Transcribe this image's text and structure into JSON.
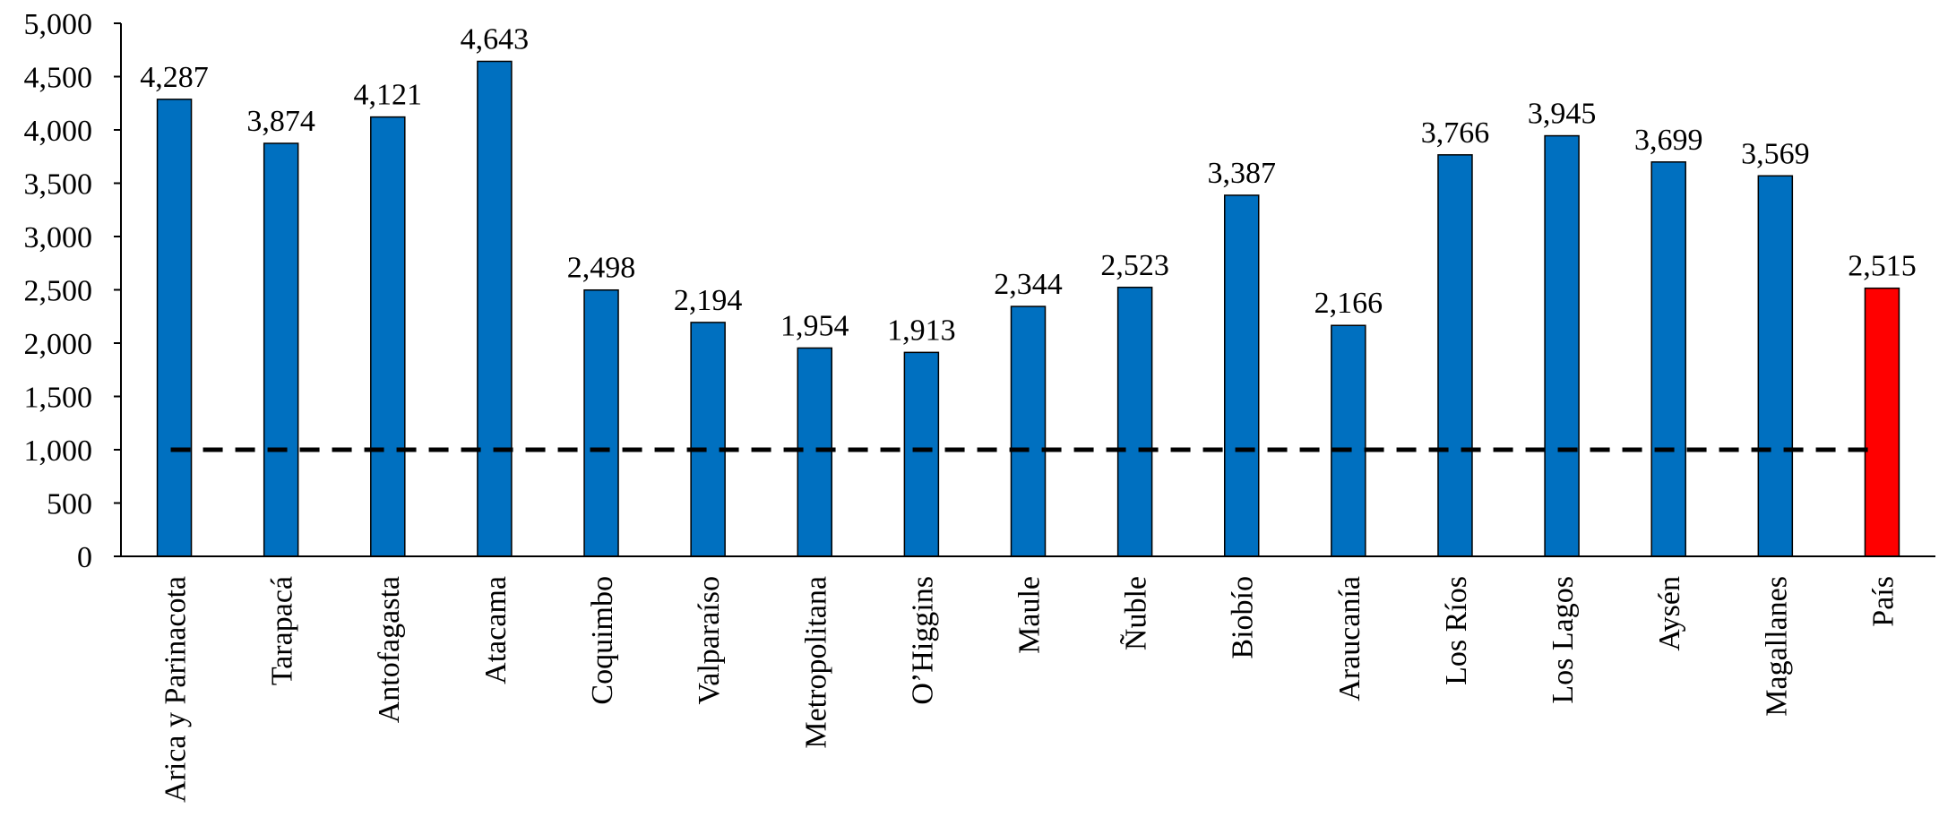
{
  "chart_data": {
    "type": "bar",
    "title": "",
    "xlabel": "",
    "ylabel": "",
    "ylim": [
      0,
      5000
    ],
    "yticks": [
      0,
      500,
      1000,
      1500,
      2000,
      2500,
      3000,
      3500,
      4000,
      4500,
      5000
    ],
    "ytick_labels": [
      "0",
      "500",
      "1,000",
      "1,500",
      "2,000",
      "2,500",
      "3,000",
      "3,500",
      "4,000",
      "4,500",
      "5,000"
    ],
    "categories": [
      "Arica y Parinacota",
      "Tarapacá",
      "Antofagasta",
      "Atacama",
      "Coquimbo",
      "Valparaíso",
      "Metropolitana",
      "O’Higgins",
      "Maule",
      "Ñuble",
      "Biobío",
      "Araucanía",
      "Los Ríos",
      "Los Lagos",
      "Aysén",
      "Magallanes",
      "País"
    ],
    "values": [
      4287,
      3874,
      4121,
      4643,
      2498,
      2194,
      1954,
      1913,
      2344,
      2523,
      3387,
      2166,
      3766,
      3945,
      3699,
      3569,
      2515
    ],
    "data_labels": [
      "4,287",
      "3,874",
      "4,121",
      "4,643",
      "2,498",
      "2,194",
      "1,954",
      "1,913",
      "2,344",
      "2,523",
      "3,387",
      "2,166",
      "3,766",
      "3,945",
      "3,699",
      "3,569",
      "2,515"
    ],
    "bar_colors": [
      "#0070C0",
      "#0070C0",
      "#0070C0",
      "#0070C0",
      "#0070C0",
      "#0070C0",
      "#0070C0",
      "#0070C0",
      "#0070C0",
      "#0070C0",
      "#0070C0",
      "#0070C0",
      "#0070C0",
      "#0070C0",
      "#0070C0",
      "#0070C0",
      "#FF0000"
    ],
    "reference_line": {
      "value": 1000,
      "style": "dashed",
      "color": "#000000"
    },
    "grid": false,
    "legend": "none"
  }
}
